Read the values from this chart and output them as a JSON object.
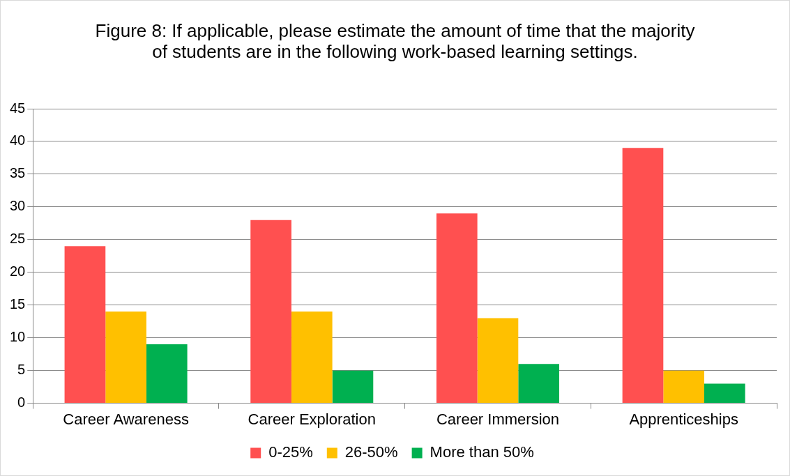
{
  "chart_data": {
    "type": "bar",
    "title": "Figure 8: If applicable, please estimate the amount of time that the majority of students are in the following work-based learning settings.",
    "categories": [
      "Career Awareness",
      "Career Exploration",
      "Career Immersion",
      "Apprenticeships"
    ],
    "series": [
      {
        "name": "0-25%",
        "color": "#ff5050",
        "values": [
          24,
          28,
          29,
          39
        ]
      },
      {
        "name": "26-50%",
        "color": "#ffc000",
        "values": [
          14,
          14,
          13,
          5
        ]
      },
      {
        "name": "More than 50%",
        "color": "#00b050",
        "values": [
          9,
          5,
          6,
          3
        ]
      }
    ],
    "ylim": [
      0,
      45
    ],
    "yticks": [
      0,
      5,
      10,
      15,
      20,
      25,
      30,
      35,
      40,
      45
    ],
    "grid": "y",
    "legend": "bottom"
  }
}
